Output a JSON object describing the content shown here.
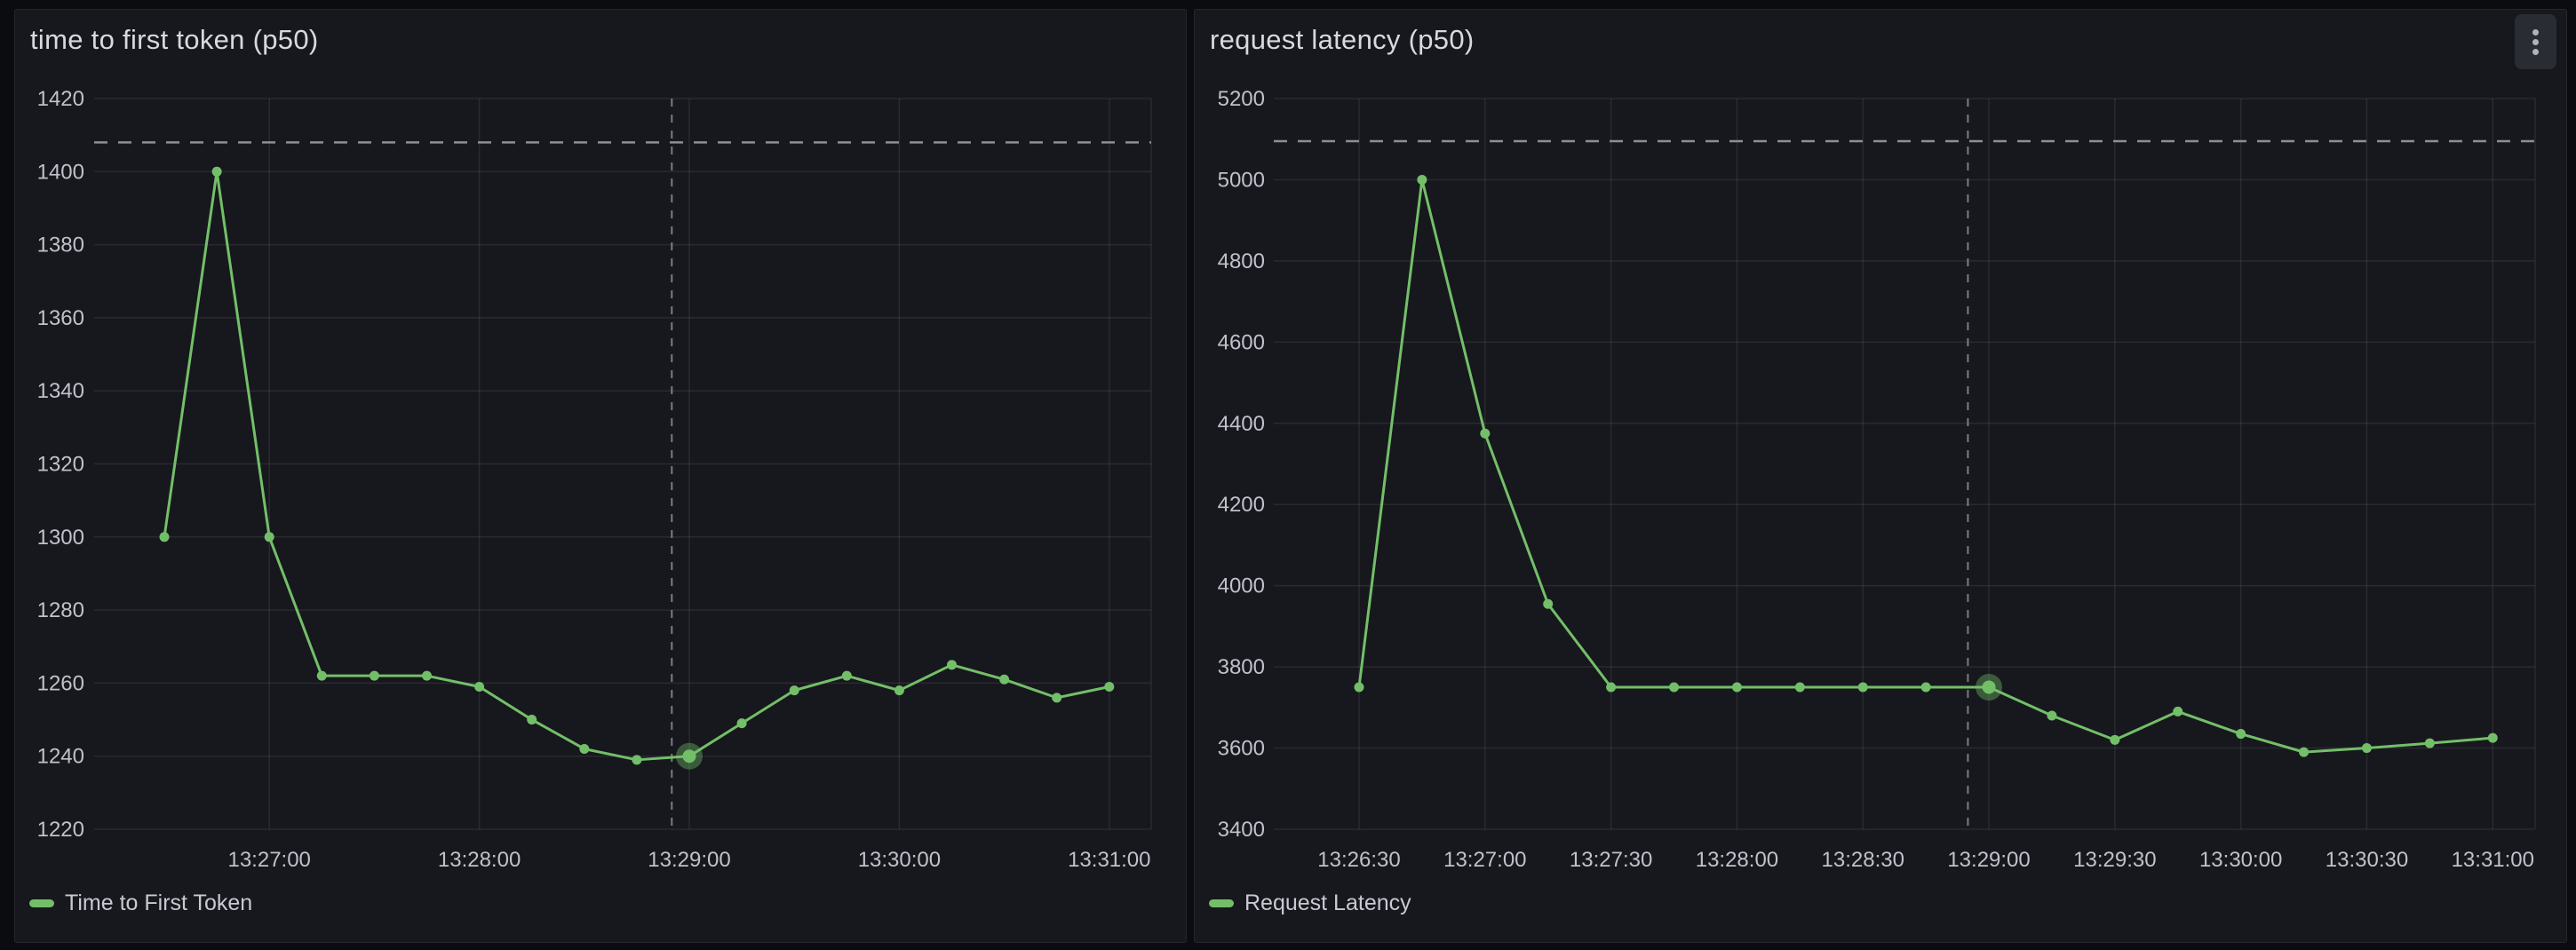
{
  "app": {
    "kind": "metrics-dashboard",
    "page_background": "#0b0c0f",
    "panel_background": "#17181d",
    "panel_border": "#26272e",
    "title_color": "#d8d9df",
    "tick_label_color": "#bfc1cb",
    "grid_color": "rgba(204,204,220,0.10)",
    "threshold_line_color": "#8e8f96",
    "crosshair_color": "#94959c",
    "series_green": "#73bf69",
    "panel_menu_icon": "kebab-vertical-icon"
  },
  "chart_data": [
    {
      "type": "line",
      "title": "time to first token (p50)",
      "legend": "Time to First Token",
      "legend_position": "bottom-left",
      "series_color": "#73bf69",
      "grid": true,
      "x": [
        "13:26:30",
        "13:26:45",
        "13:27:00",
        "13:27:15",
        "13:27:30",
        "13:27:45",
        "13:28:00",
        "13:28:15",
        "13:28:30",
        "13:28:45",
        "13:29:00",
        "13:29:15",
        "13:29:30",
        "13:29:45",
        "13:30:00",
        "13:30:15",
        "13:30:30",
        "13:30:45",
        "13:31:00"
      ],
      "values": [
        1300,
        1400,
        1300,
        1262,
        1262,
        1262,
        1259,
        1250,
        1242,
        1239,
        1240,
        1249,
        1258,
        1262,
        1258,
        1265,
        1261,
        1256,
        1259
      ],
      "y_ticks": [
        1420,
        1400,
        1380,
        1360,
        1340,
        1320,
        1300,
        1280,
        1260,
        1240,
        1220
      ],
      "x_ticks": [
        "13:27:00",
        "13:28:00",
        "13:29:00",
        "13:30:00",
        "13:31:00"
      ],
      "ylim": [
        1220,
        1420
      ],
      "threshold_value": 1408,
      "crosshair_x": "13:28:55",
      "highlight_index": 10,
      "highlight_point": {
        "x": "13:29:00",
        "value": 1240
      },
      "show_menu_button": false
    },
    {
      "type": "line",
      "title": "request latency (p50)",
      "legend": "Request Latency",
      "legend_position": "bottom-left",
      "series_color": "#73bf69",
      "grid": true,
      "x": [
        "13:26:30",
        "13:26:45",
        "13:27:00",
        "13:27:15",
        "13:27:30",
        "13:27:45",
        "13:28:00",
        "13:28:15",
        "13:28:30",
        "13:28:45",
        "13:29:00",
        "13:29:15",
        "13:29:30",
        "13:29:45",
        "13:30:00",
        "13:30:15",
        "13:30:30",
        "13:30:45",
        "13:31:00"
      ],
      "values": [
        3750,
        5000,
        4375,
        3955,
        3750,
        3750,
        3750,
        3750,
        3750,
        3750,
        3750,
        3680,
        3620,
        3690,
        3635,
        3590,
        3600,
        3612,
        3625
      ],
      "y_ticks": [
        5200,
        5000,
        4800,
        4600,
        4400,
        4200,
        4000,
        3800,
        3600,
        3400
      ],
      "x_ticks": [
        "13:26:30",
        "13:27:00",
        "13:27:30",
        "13:28:00",
        "13:28:30",
        "13:29:00",
        "13:29:30",
        "13:30:00",
        "13:30:30",
        "13:31:00"
      ],
      "ylim": [
        3400,
        5200
      ],
      "threshold_value": 5095,
      "crosshair_x": "13:28:55",
      "highlight_index": 10,
      "highlight_point": {
        "x": "13:29:00",
        "value": 3750
      },
      "show_menu_button": true
    }
  ]
}
